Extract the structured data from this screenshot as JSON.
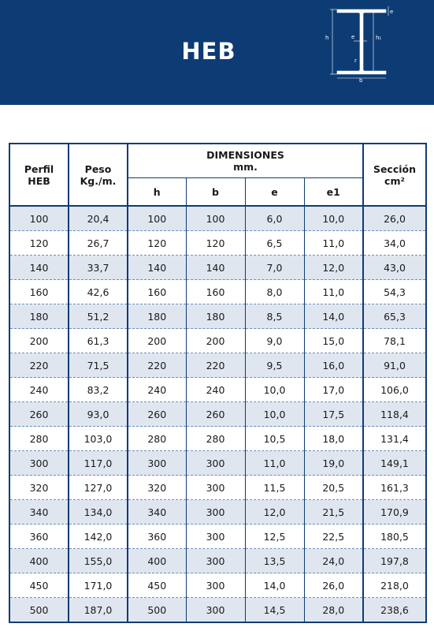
{
  "header": {
    "title": "HEB",
    "bg_color": "#0d3c74"
  },
  "diagram": {
    "labels": {
      "h": "h",
      "h1": "h₁",
      "e_web": "e",
      "e_flange": "e",
      "r": "r",
      "b": "b"
    }
  },
  "table": {
    "headers": {
      "perfil": "Perfil HEB",
      "peso": "Peso Kg./m.",
      "dimensiones": "DIMENSIONES",
      "dimensiones_unit": "mm.",
      "h": "h",
      "b": "b",
      "e": "e",
      "e1": "e1",
      "seccion": "Sección",
      "seccion_unit": "cm²"
    },
    "rows": [
      [
        "100",
        "20,4",
        "100",
        "100",
        "6,0",
        "10,0",
        "26,0"
      ],
      [
        "120",
        "26,7",
        "120",
        "120",
        "6,5",
        "11,0",
        "34,0"
      ],
      [
        "140",
        "33,7",
        "140",
        "140",
        "7,0",
        "12,0",
        "43,0"
      ],
      [
        "160",
        "42,6",
        "160",
        "160",
        "8,0",
        "11,0",
        "54,3"
      ],
      [
        "180",
        "51,2",
        "180",
        "180",
        "8,5",
        "14,0",
        "65,3"
      ],
      [
        "200",
        "61,3",
        "200",
        "200",
        "9,0",
        "15,0",
        "78,1"
      ],
      [
        "220",
        "71,5",
        "220",
        "220",
        "9,5",
        "16,0",
        "91,0"
      ],
      [
        "240",
        "83,2",
        "240",
        "240",
        "10,0",
        "17,0",
        "106,0"
      ],
      [
        "260",
        "93,0",
        "260",
        "260",
        "10,0",
        "17,5",
        "118,4"
      ],
      [
        "280",
        "103,0",
        "280",
        "280",
        "10,5",
        "18,0",
        "131,4"
      ],
      [
        "300",
        "117,0",
        "300",
        "300",
        "11,0",
        "19,0",
        "149,1"
      ],
      [
        "320",
        "127,0",
        "320",
        "300",
        "11,5",
        "20,5",
        "161,3"
      ],
      [
        "340",
        "134,0",
        "340",
        "300",
        "12,0",
        "21,5",
        "170,9"
      ],
      [
        "360",
        "142,0",
        "360",
        "300",
        "12,5",
        "22,5",
        "180,5"
      ],
      [
        "400",
        "155,0",
        "400",
        "300",
        "13,5",
        "24,0",
        "197,8"
      ],
      [
        "450",
        "171,0",
        "450",
        "300",
        "14,0",
        "26,0",
        "218,0"
      ],
      [
        "500",
        "187,0",
        "500",
        "300",
        "14,5",
        "28,0",
        "238,6"
      ]
    ]
  }
}
